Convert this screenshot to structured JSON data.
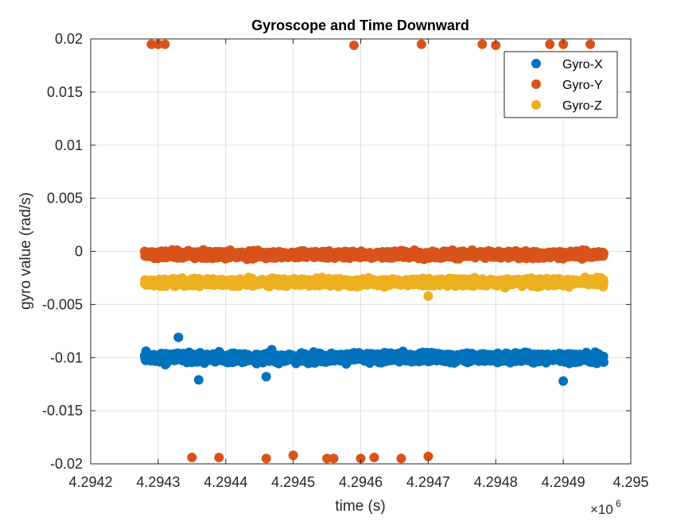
{
  "chart_data": {
    "type": "scatter",
    "title": "Gyroscope and Time Downward",
    "xlabel": "time (s)",
    "ylabel": "gyro value (rad/s)",
    "x_exponent_label": "×10",
    "x_exponent_power": "6",
    "xlim": [
      4.2942,
      4.295
    ],
    "ylim": [
      -0.02,
      0.02
    ],
    "x_ticks": [
      "4.2942",
      "4.2943",
      "4.2944",
      "4.2945",
      "4.2946",
      "4.2947",
      "4.2948",
      "4.2949",
      "4.295"
    ],
    "y_ticks": [
      "0.02",
      "0.015",
      "0.01",
      "0.005",
      "0",
      "-0.005",
      "-0.01",
      "-0.015",
      "-0.02"
    ],
    "grid": true,
    "legend_position": "top-right",
    "x_range_data": [
      4.29428,
      4.29496
    ],
    "series": [
      {
        "name": "Gyro-X",
        "color": "#0072BD",
        "band_center": -0.01,
        "band_halfwidth": 0.0009,
        "outliers": [
          [
            4.29433,
            -0.0081
          ],
          [
            4.29446,
            -0.0118
          ],
          [
            4.2949,
            -0.0122
          ],
          [
            4.29436,
            -0.0121
          ]
        ]
      },
      {
        "name": "Gyro-Y",
        "color": "#D95319",
        "band_center": -0.0003,
        "band_halfwidth": 0.0007,
        "outliers": [
          [
            4.29429,
            0.0195
          ],
          [
            4.2943,
            0.0195
          ],
          [
            4.29431,
            0.0195
          ],
          [
            4.29459,
            0.0194
          ],
          [
            4.29469,
            0.0195
          ],
          [
            4.29478,
            0.0195
          ],
          [
            4.2948,
            0.0194
          ],
          [
            4.29488,
            0.0195
          ],
          [
            4.2949,
            0.0195
          ],
          [
            4.29494,
            0.0195
          ],
          [
            4.29435,
            -0.0194
          ],
          [
            4.29439,
            -0.0194
          ],
          [
            4.29446,
            -0.0195
          ],
          [
            4.2945,
            -0.0192
          ],
          [
            4.29455,
            -0.0195
          ],
          [
            4.29456,
            -0.0195
          ],
          [
            4.2946,
            -0.0195
          ],
          [
            4.29462,
            -0.0194
          ],
          [
            4.29466,
            -0.0195
          ],
          [
            4.2947,
            -0.0193
          ]
        ]
      },
      {
        "name": "Gyro-Z",
        "color": "#EDB120",
        "band_center": -0.0029,
        "band_halfwidth": 0.0007,
        "outliers": [
          [
            4.2947,
            -0.0042
          ]
        ]
      }
    ]
  }
}
